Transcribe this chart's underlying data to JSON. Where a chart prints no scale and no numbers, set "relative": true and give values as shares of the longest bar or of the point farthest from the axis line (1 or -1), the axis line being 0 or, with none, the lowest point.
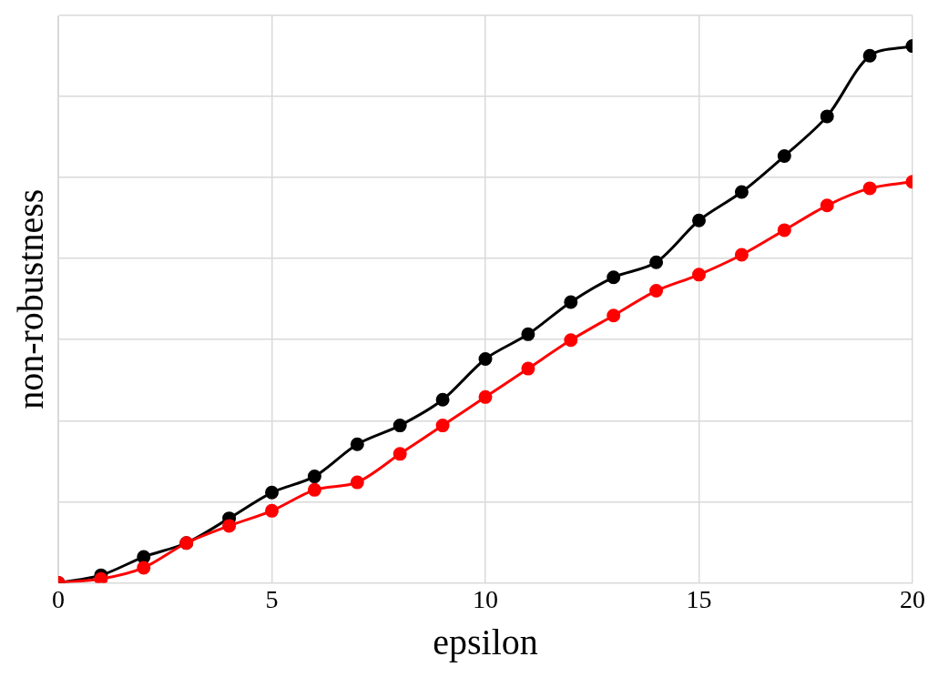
{
  "chart_data": {
    "type": "line",
    "xlabel": "epsilon",
    "ylabel": "non-robustness",
    "relative": true,
    "x": [
      0,
      1,
      2,
      3,
      4,
      5,
      6,
      7,
      8,
      9,
      10,
      11,
      12,
      13,
      14,
      15,
      16,
      17,
      18,
      19,
      20
    ],
    "xlim": [
      0,
      20
    ],
    "xticks": [
      0,
      5,
      10,
      15,
      20
    ],
    "grid": true,
    "legend": false,
    "marker": "circle",
    "line_style": "solid",
    "series": [
      {
        "color": "#000000",
        "values": [
          0,
          0.014,
          0.048,
          0.074,
          0.12,
          0.168,
          0.198,
          0.258,
          0.293,
          0.341,
          0.417,
          0.463,
          0.523,
          0.569,
          0.597,
          0.675,
          0.728,
          0.795,
          0.869,
          0.982,
          1
        ]
      },
      {
        "color": "#ff0000",
        "values": [
          0,
          0.007,
          0.028,
          0.074,
          0.106,
          0.134,
          0.173,
          0.187,
          0.24,
          0.293,
          0.346,
          0.399,
          0.452,
          0.498,
          0.544,
          0.574,
          0.611,
          0.657,
          0.703,
          0.735,
          0.747
        ]
      }
    ]
  }
}
